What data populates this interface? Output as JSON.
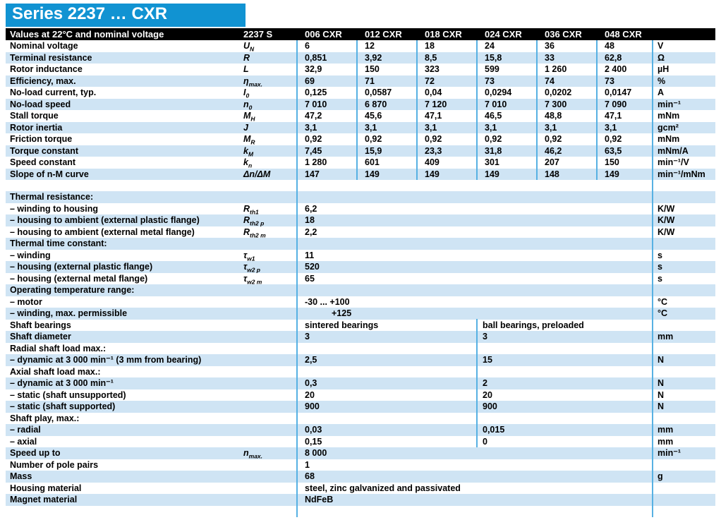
{
  "title": "Series 2237 … CXR",
  "colors": {
    "accent": "#1193d2",
    "header_bg": "#000000",
    "row_shade": "#cfe4f4",
    "grid_line": "#57b1e3"
  },
  "header": {
    "label": "Values at 22°C and nominal voltage",
    "series": "2237 S",
    "variants": [
      "006 CXR",
      "012 CXR",
      "018 CXR",
      "024 CXR",
      "036 CXR",
      "048 CXR"
    ]
  },
  "motor_rows": [
    {
      "label": "Nominal voltage",
      "sym": "U",
      "sub": "N",
      "values": [
        "6",
        "12",
        "18",
        "24",
        "36",
        "48"
      ],
      "unit": "V"
    },
    {
      "label": "Terminal resistance",
      "sym": "R",
      "sub": "",
      "values": [
        "0,851",
        "3,92",
        "8,5",
        "15,8",
        "33",
        "62,8"
      ],
      "unit": "Ω"
    },
    {
      "label": "Rotor inductance",
      "sym": "L",
      "sub": "",
      "values": [
        "32,9",
        "150",
        "323",
        "599",
        "1 260",
        "2 400"
      ],
      "unit": "µH"
    },
    {
      "label": "Efficiency, max.",
      "sym": "η",
      "sub": "max.",
      "values": [
        "69",
        "71",
        "72",
        "73",
        "74",
        "73"
      ],
      "unit": "%"
    },
    {
      "label": "No-load current, typ.",
      "sym": "I",
      "sub": "0",
      "values": [
        "0,125",
        "0,0587",
        "0,04",
        "0,0294",
        "0,0202",
        "0,0147"
      ],
      "unit": "A"
    },
    {
      "label": "No-load speed",
      "sym": "n",
      "sub": "0",
      "values": [
        "7 010",
        "6 870",
        "7 120",
        "7 010",
        "7 300",
        "7 090"
      ],
      "unit": "min⁻¹"
    },
    {
      "label": "Stall torque",
      "sym": "M",
      "sub": "H",
      "values": [
        "47,2",
        "45,6",
        "47,1",
        "46,5",
        "48,8",
        "47,1"
      ],
      "unit": "mNm"
    },
    {
      "label": "Rotor inertia",
      "sym": "J",
      "sub": "",
      "values": [
        "3,1",
        "3,1",
        "3,1",
        "3,1",
        "3,1",
        "3,1"
      ],
      "unit": "gcm²"
    },
    {
      "label": "Friction torque",
      "sym": "M",
      "sub": "R",
      "values": [
        "0,92",
        "0,92",
        "0,92",
        "0,92",
        "0,92",
        "0,92"
      ],
      "unit": "mNm"
    },
    {
      "label": "Torque constant",
      "sym": "k",
      "sub": "M",
      "values": [
        "7,45",
        "15,9",
        "23,3",
        "31,8",
        "46,2",
        "63,5"
      ],
      "unit": "mNm/A"
    },
    {
      "label": "Speed constant",
      "sym": "k",
      "sub": "n",
      "values": [
        "1 280",
        "601",
        "409",
        "301",
        "207",
        "150"
      ],
      "unit": "min⁻¹/V"
    },
    {
      "label": "Slope of n-M curve",
      "sym": "Δn/ΔM",
      "sub": "",
      "values": [
        "147",
        "149",
        "149",
        "149",
        "148",
        "149"
      ],
      "unit": "min⁻¹/mNm"
    }
  ],
  "spec_rows": [
    {
      "label": "Thermal resistance:"
    },
    {
      "label": "– winding to housing",
      "sym": "R",
      "sub": "th1",
      "v1": "6,2",
      "unit": "K/W"
    },
    {
      "label": "– housing to ambient (external plastic flange)",
      "sym": "R",
      "sub": "th2 p",
      "v1": "18",
      "unit": "K/W"
    },
    {
      "label": "– housing to ambient (external metal flange)",
      "sym": "R",
      "sub": "th2 m",
      "v1": "2,2",
      "unit": "K/W"
    },
    {
      "label": "Thermal time constant:"
    },
    {
      "label": "– winding",
      "sym": "τ",
      "sub": "w1",
      "v1": "11",
      "unit": "s"
    },
    {
      "label": "– housing (external plastic flange)",
      "sym": "τ",
      "sub": "w2 p",
      "v1": "520",
      "unit": "s"
    },
    {
      "label": "– housing (external metal flange)",
      "sym": "τ",
      "sub": "w2 m",
      "v1": "65",
      "unit": "s"
    },
    {
      "label": "Operating temperature range:"
    },
    {
      "label": "– motor",
      "v1": "-30  ... +100",
      "unit": "°C"
    },
    {
      "label": "– winding, max. permissible",
      "v1": "+125",
      "indent": true,
      "unit": "°C"
    },
    {
      "label": "Shaft bearings",
      "v1": "sintered bearings",
      "v2": "ball bearings, preloaded",
      "mid": true
    },
    {
      "label": "Shaft diameter",
      "v1": "3",
      "v2": "3",
      "unit": "mm",
      "mid": true
    },
    {
      "label": "Radial shaft load max.:",
      "mid": true
    },
    {
      "label": "– dynamic at 3 000 min⁻¹ (3 mm from bearing)",
      "v1": "2,5",
      "v2": "15",
      "unit": "N",
      "mid": true
    },
    {
      "label": "Axial shaft load max.:",
      "mid": true
    },
    {
      "label": "– dynamic at 3 000 min⁻¹",
      "v1": "0,3",
      "v2": "2",
      "unit": "N",
      "mid": true
    },
    {
      "label": "– static (shaft unsupported)",
      "v1": "20",
      "v2": "20",
      "unit": "N",
      "mid": true
    },
    {
      "label": "– static (shaft supported)",
      "v1": "900",
      "v2": "900",
      "unit": "N",
      "mid": true
    },
    {
      "label": "Shaft play, max.:",
      "mid": true
    },
    {
      "label": "– radial",
      "v1": "0,03",
      "v2": "0,015",
      "unit": "mm",
      "mid": true
    },
    {
      "label": "– axial",
      "v1": "0,15",
      "v2": "0",
      "unit": "mm",
      "mid": true
    },
    {
      "label": "Speed up to",
      "sym": "n",
      "sub": "max.",
      "v1": "8 000",
      "unit": "min⁻¹"
    },
    {
      "label": "Number of pole pairs",
      "v1": "1"
    },
    {
      "label": "Mass",
      "v1": "68",
      "unit": "g"
    },
    {
      "label": "Housing material",
      "v1": "steel, zinc galvanized and passivated"
    },
    {
      "label": "Magnet material",
      "v1": "NdFeB"
    }
  ]
}
